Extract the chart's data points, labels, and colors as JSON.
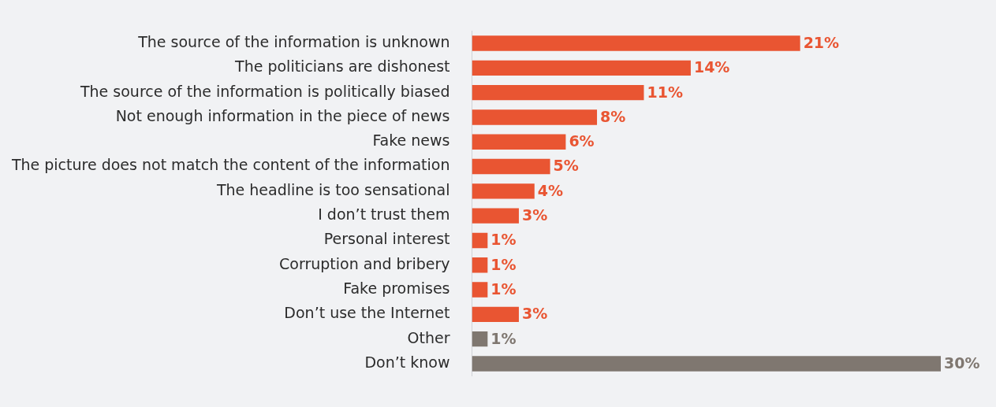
{
  "chart_data": {
    "type": "bar",
    "orientation": "horizontal",
    "categories": [
      "The source of the information is unknown",
      "The politicians are dishonest",
      "The source of the information is politically biased",
      "Not enough information in the piece of news",
      "Fake news",
      "The picture does not match the content of the information",
      "The headline is too sensational",
      "I don’t trust them",
      "Personal interest",
      "Corruption and bribery",
      "Fake promises",
      "Don’t use the Internet",
      "Other",
      "Don’t know"
    ],
    "values": [
      21,
      14,
      11,
      8,
      6,
      5,
      4,
      3,
      1,
      1,
      1,
      3,
      1,
      30
    ],
    "value_labels": [
      "21%",
      "14%",
      "11%",
      "8%",
      "6%",
      "5%",
      "4%",
      "3%",
      "1%",
      "1%",
      "1%",
      "3%",
      "1%",
      "30%"
    ],
    "colors": [
      "#e95532",
      "#e95532",
      "#e95532",
      "#e95532",
      "#e95532",
      "#e95532",
      "#e95532",
      "#e95532",
      "#e95532",
      "#e95532",
      "#e95532",
      "#e95532",
      "#7f7770",
      "#7f7770"
    ],
    "tick_labels": "y",
    "grid": false,
    "legend": false
  }
}
